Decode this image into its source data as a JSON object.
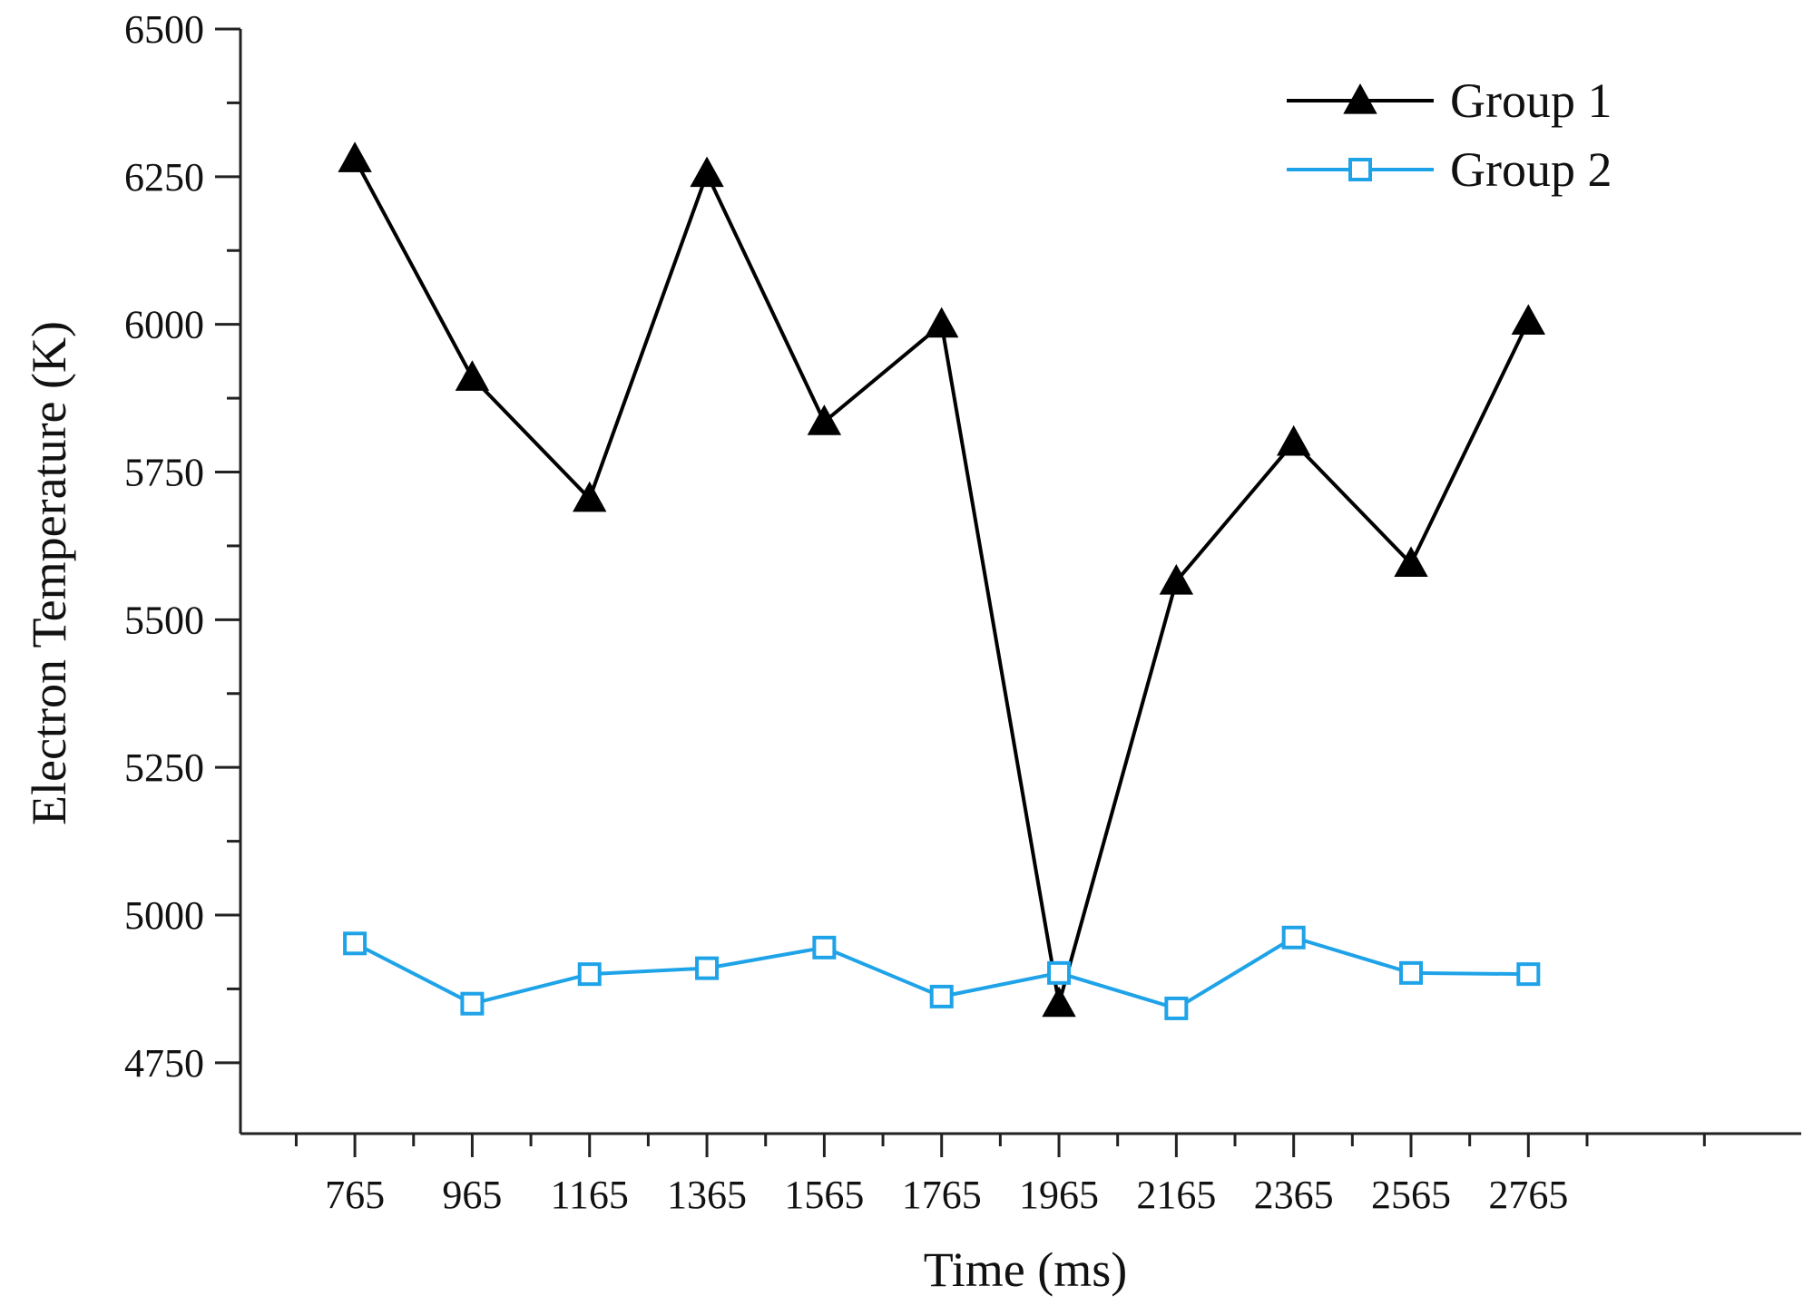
{
  "chart_data": {
    "type": "line",
    "title": "",
    "xlabel": "Time (ms)",
    "ylabel": "Electron Temperature (K)",
    "x": [
      765,
      965,
      1165,
      1365,
      1565,
      1765,
      1965,
      2165,
      2365,
      2565,
      2765
    ],
    "x_tick_labels": [
      "765",
      "965",
      "1165",
      "1365",
      "1565",
      "1765",
      "1965",
      "2165",
      "2365",
      "2565",
      "2765"
    ],
    "xlim": [
      570,
      3230
    ],
    "y_ticks": [
      4750,
      5000,
      5250,
      5500,
      5750,
      6000,
      6250,
      6500
    ],
    "y_tick_labels": [
      "4750",
      "5000",
      "5250",
      "5500",
      "5750",
      "6000",
      "6250",
      "6500"
    ],
    "ylim": [
      4630,
      6500
    ],
    "grid": false,
    "legend_position": "top-right",
    "series": [
      {
        "name": "Group 1",
        "color": "#000000",
        "marker": "filled-triangle",
        "values": [
          6280,
          5910,
          5705,
          6255,
          5835,
          6000,
          4850,
          5565,
          5800,
          5595,
          6005
        ]
      },
      {
        "name": "Group 2",
        "color": "#1fa3e8",
        "marker": "open-square",
        "values": [
          4952,
          4850,
          4900,
          4910,
          4945,
          4862,
          4902,
          4842,
          4962,
          4902,
          4900
        ]
      }
    ]
  }
}
